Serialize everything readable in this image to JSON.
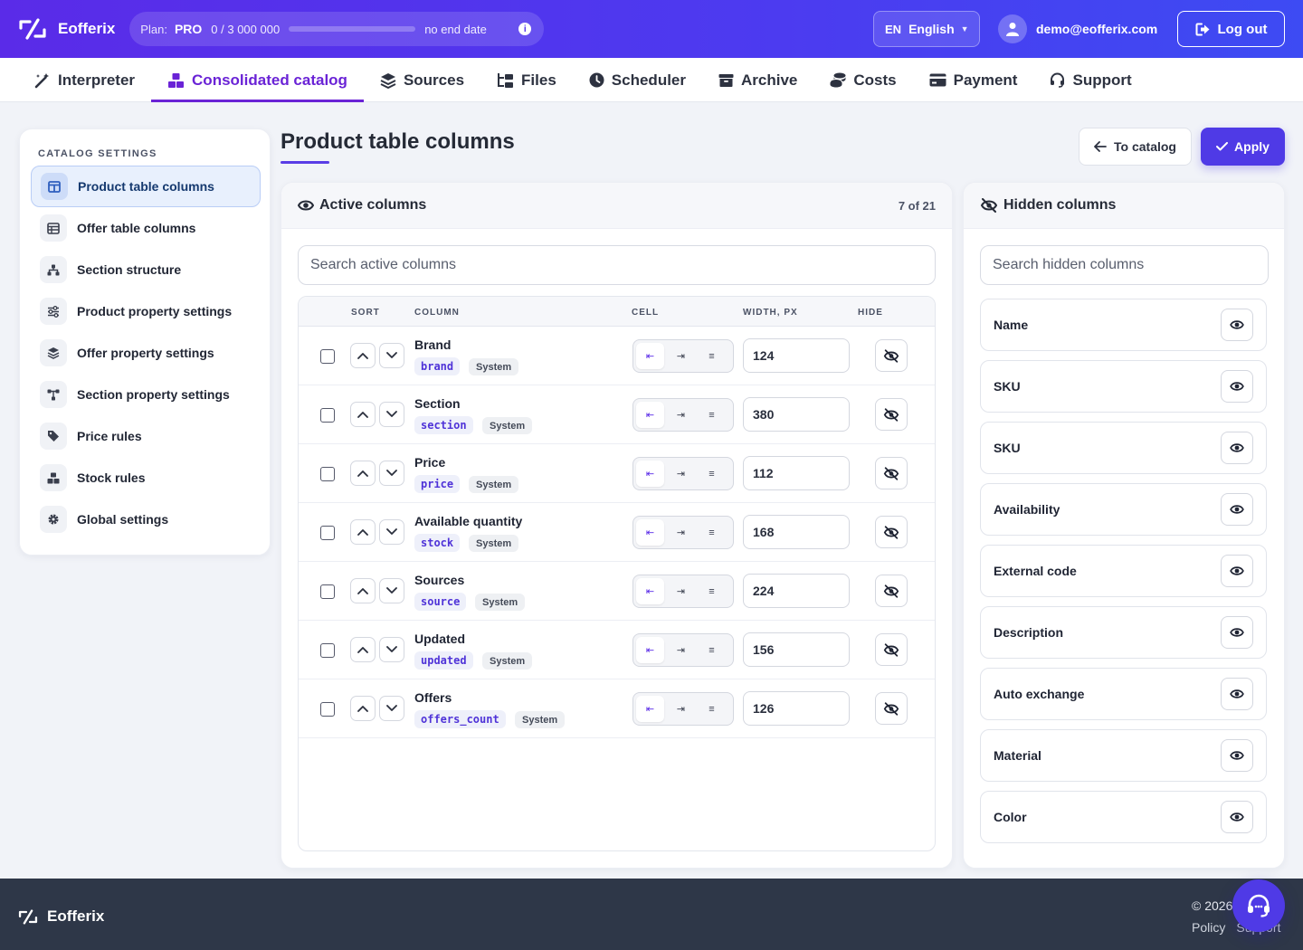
{
  "app": {
    "name": "Eofferix",
    "plan_label": "Plan:",
    "plan_value": "PRO",
    "plan_usage": "0 / 3 000 000",
    "plan_usage_fraction": 0,
    "plan_end": "no end date",
    "lang_code": "EN",
    "lang_name": "English",
    "user_email": "demo@eofferix.com",
    "logout_label": "Log out"
  },
  "nav": [
    {
      "label": "Interpreter",
      "icon": "magic-wand-icon"
    },
    {
      "label": "Consolidated catalog",
      "icon": "boxes-icon",
      "active": true
    },
    {
      "label": "Sources",
      "icon": "layers-icon"
    },
    {
      "label": "Files",
      "icon": "folder-tree-icon"
    },
    {
      "label": "Scheduler",
      "icon": "clock-icon"
    },
    {
      "label": "Archive",
      "icon": "archive-icon"
    },
    {
      "label": "Costs",
      "icon": "coins-icon"
    },
    {
      "label": "Payment",
      "icon": "credit-card-icon"
    },
    {
      "label": "Support",
      "icon": "headset-icon"
    }
  ],
  "sidebar": {
    "title": "CATALOG SETTINGS",
    "items": [
      {
        "label": "Product table columns",
        "icon": "columns-icon",
        "active": true
      },
      {
        "label": "Offer table columns",
        "icon": "table-icon"
      },
      {
        "label": "Section structure",
        "icon": "sitemap-icon"
      },
      {
        "label": "Product property settings",
        "icon": "sliders-icon"
      },
      {
        "label": "Offer property settings",
        "icon": "layers-icon"
      },
      {
        "label": "Section property settings",
        "icon": "diagram-icon"
      },
      {
        "label": "Price rules",
        "icon": "tags-icon"
      },
      {
        "label": "Stock rules",
        "icon": "boxes-icon"
      },
      {
        "label": "Global settings",
        "icon": "gear-icon"
      }
    ]
  },
  "page": {
    "title": "Product table columns",
    "to_catalog_label": "To catalog",
    "apply_label": "Apply"
  },
  "active_panel": {
    "title": "Active columns",
    "count": "7 of 21",
    "search_placeholder": "Search active columns",
    "headers": {
      "sort": "SORT",
      "column": "COLUMN",
      "cell": "CELL",
      "width": "WIDTH, PX",
      "hide": "HIDE"
    },
    "cell_options": [
      "⇤",
      "⇥",
      "≡"
    ],
    "rows": [
      {
        "name": "Brand",
        "code": "brand",
        "badge": "System",
        "width": "124"
      },
      {
        "name": "Section",
        "code": "section",
        "badge": "System",
        "width": "380"
      },
      {
        "name": "Price",
        "code": "price",
        "badge": "System",
        "width": "112"
      },
      {
        "name": "Available quantity",
        "code": "stock",
        "badge": "System",
        "width": "168"
      },
      {
        "name": "Sources",
        "code": "source",
        "badge": "System",
        "width": "224"
      },
      {
        "name": "Updated",
        "code": "updated",
        "badge": "System",
        "width": "156"
      },
      {
        "name": "Offers",
        "code": "offers_count",
        "badge": "System",
        "width": "126"
      }
    ]
  },
  "hidden_panel": {
    "title": "Hidden columns",
    "search_placeholder": "Search hidden columns",
    "items": [
      "Name",
      "SKU",
      "SKU",
      "Availability",
      "External code",
      "Description",
      "Auto exchange",
      "Material",
      "Color"
    ]
  },
  "footer": {
    "brand": "Eofferix",
    "copyright": "© 2026",
    "links": [
      "Policy",
      "Support"
    ]
  }
}
